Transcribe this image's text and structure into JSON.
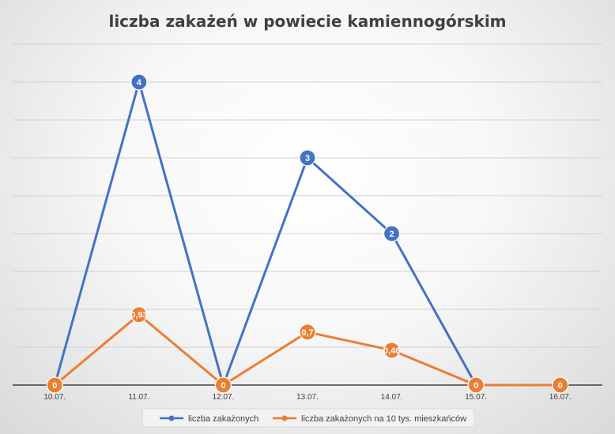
{
  "chart_data": {
    "type": "line",
    "title": "liczba zakażeń w powiecie kamiennogórskim",
    "categories": [
      "10.07.",
      "11.07.",
      "12.07.",
      "13.07.",
      "14.07.",
      "15.07.",
      "16.07."
    ],
    "series": [
      {
        "name": "liczba zakażonych",
        "values": [
          0,
          4,
          0,
          3,
          2,
          0,
          null
        ],
        "labels": [
          "0",
          "4",
          "0",
          "3",
          "2",
          "0",
          null
        ],
        "color": "#4472C4"
      },
      {
        "name": "liczba zakażonych na 10 tys. mieszkańców",
        "values": [
          0,
          0.93,
          0,
          0.7,
          0.46,
          0,
          0
        ],
        "labels": [
          "0",
          "0,93",
          "0",
          "0,7",
          "0,46",
          "0",
          "0"
        ],
        "color": "#ED7D31"
      }
    ],
    "ylim": [
      0,
      4.5
    ],
    "y_gridline_step": 0.5,
    "y_tick_labels_shown": false,
    "grid": true,
    "legend": "bottom"
  }
}
